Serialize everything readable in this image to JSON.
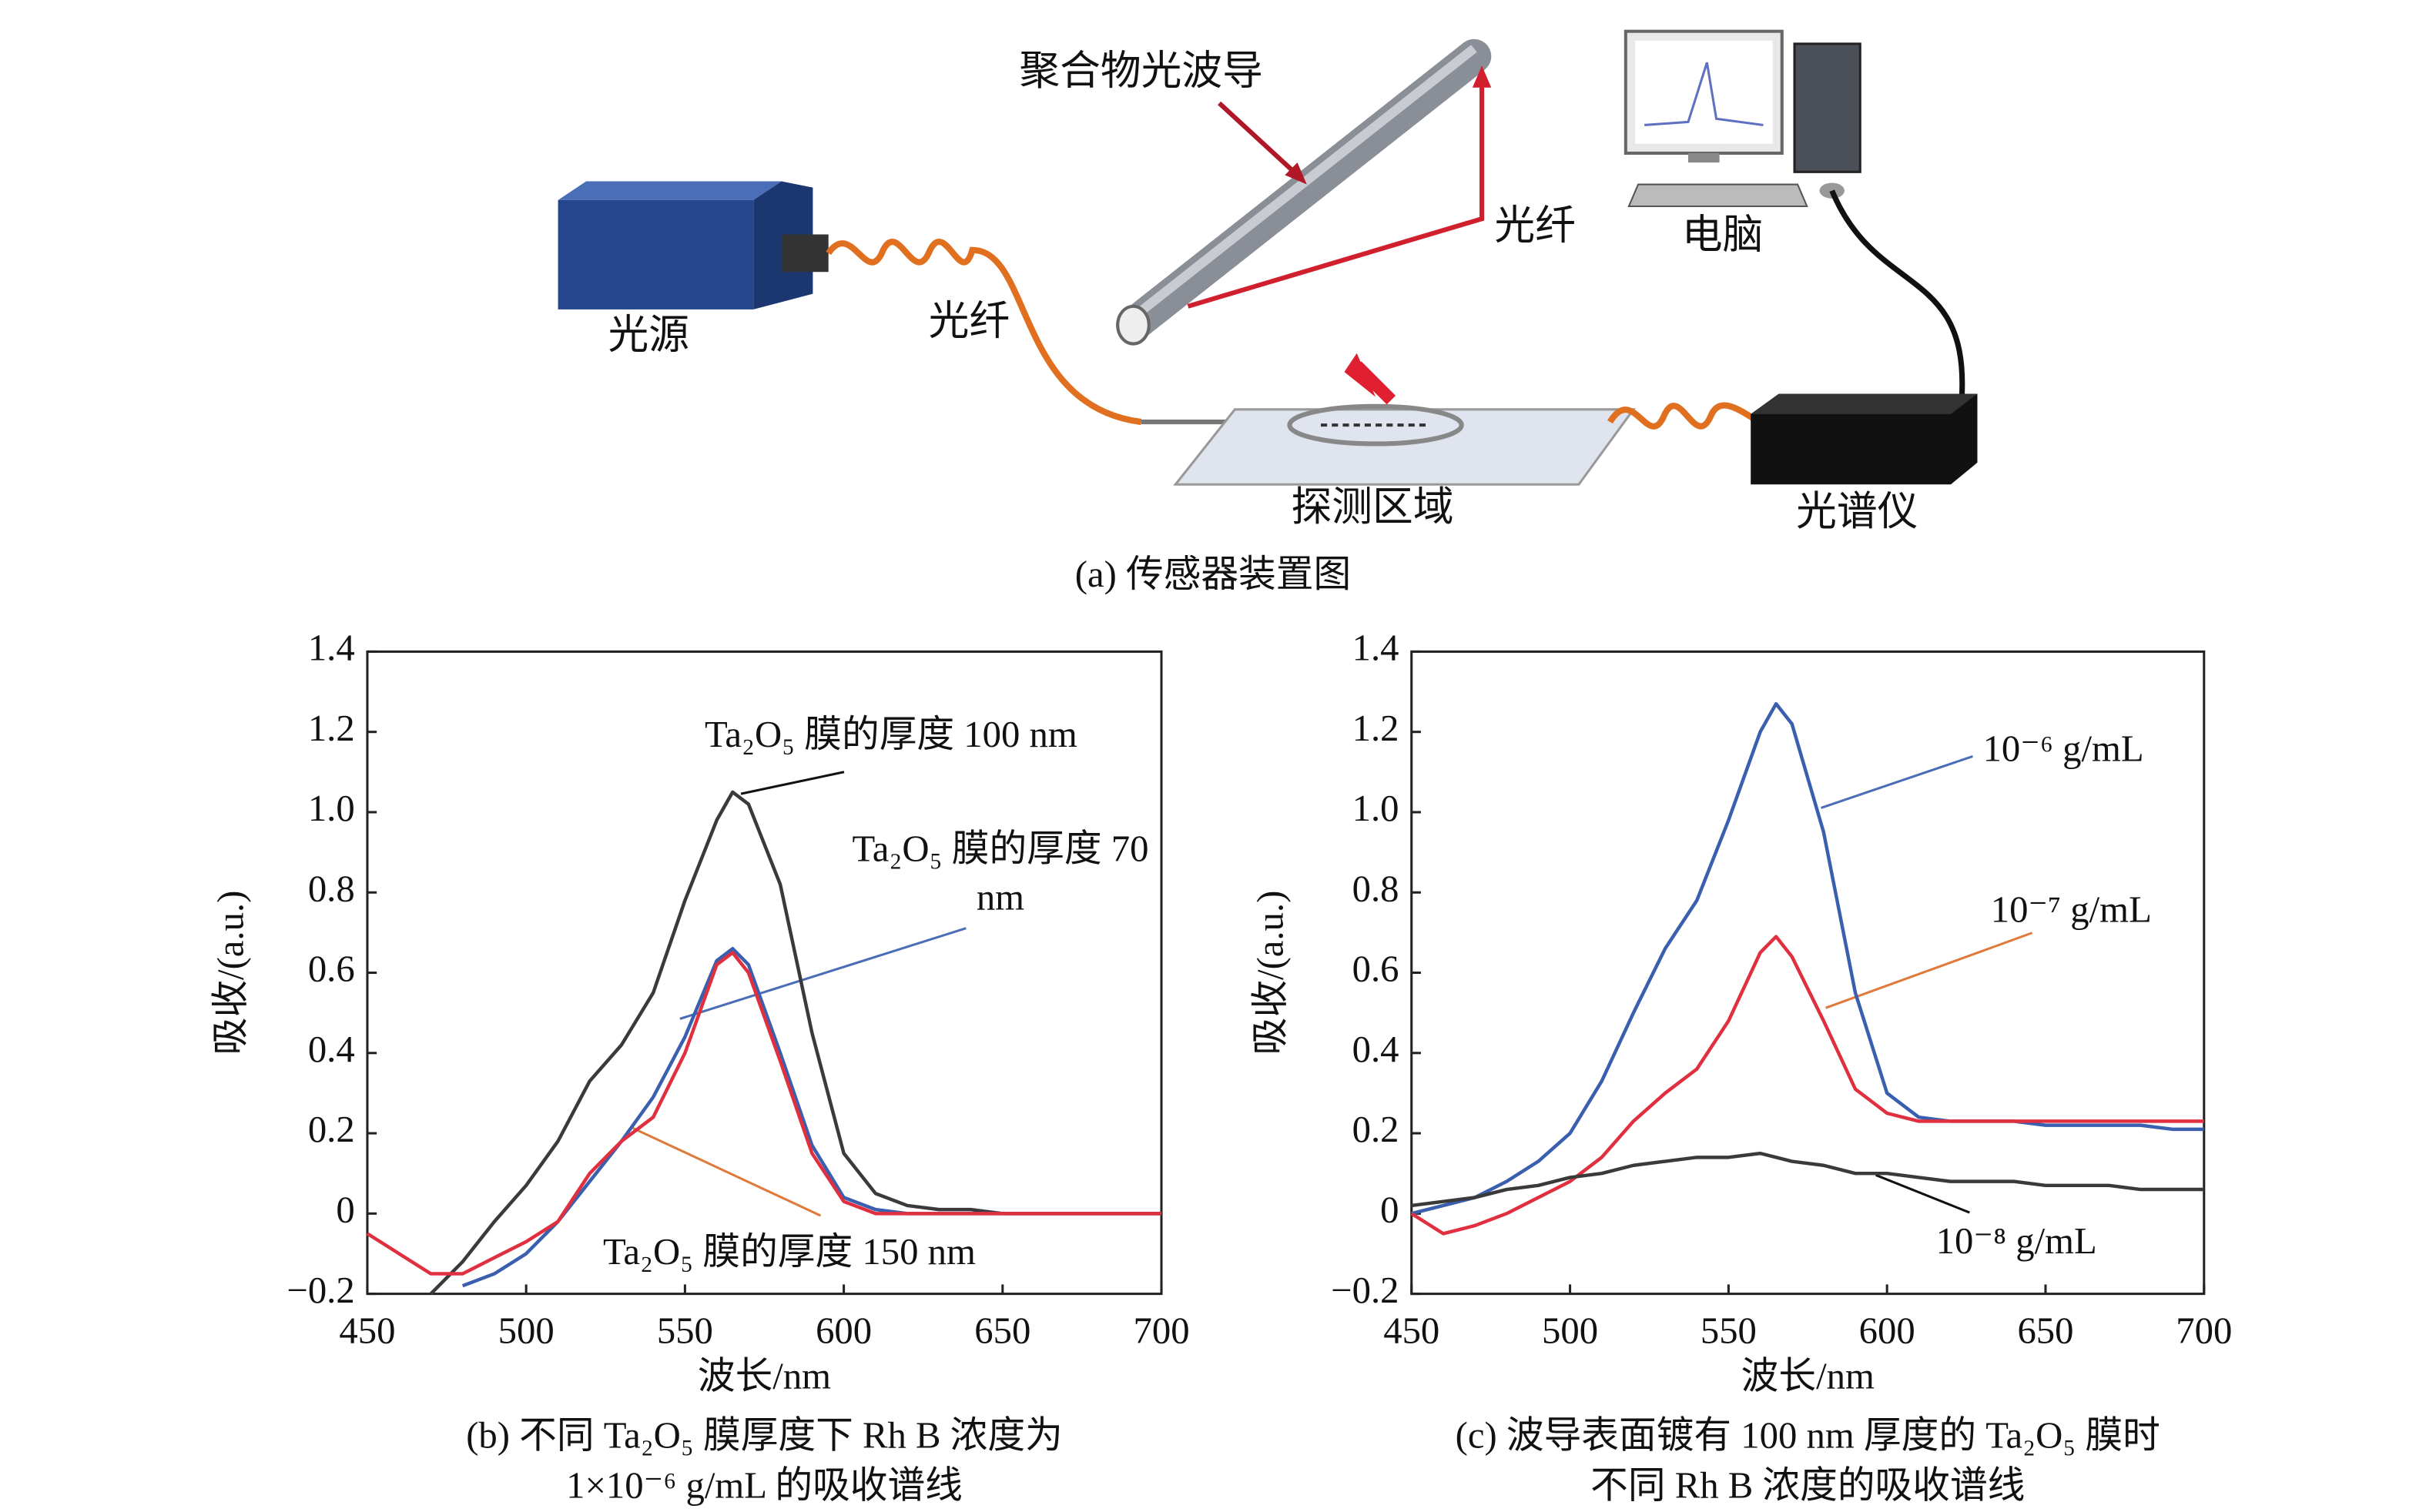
{
  "diagram": {
    "labels": {
      "waveguide": "聚合物光波导",
      "fiber_top": "光纤",
      "computer": "电脑",
      "source": "光源",
      "fiber_left": "光纤",
      "detection": "探测区域",
      "spectrometer": "光谱仪"
    },
    "caption": "(a) 传感器装置图"
  },
  "chart_data": [
    {
      "type": "line",
      "caption": [
        "(b) 不同 Ta₂O₅ 膜厚度下 Rh B 浓度为",
        "1×10⁻⁶ g/mL 的吸收谱线"
      ],
      "xlabel": "波长/nm",
      "ylabel": "吸收/(a.u.)",
      "x": [
        450,
        460,
        470,
        480,
        490,
        500,
        510,
        520,
        530,
        540,
        550,
        560,
        565,
        570,
        580,
        590,
        600,
        610,
        620,
        630,
        640,
        650,
        660,
        670,
        680,
        690,
        700
      ],
      "xlim": [
        450,
        700
      ],
      "ylim": [
        -0.2,
        1.4
      ],
      "xticks": [
        450,
        500,
        550,
        600,
        650,
        700
      ],
      "yticks": [
        {
          "value": -0.2,
          "label": "−0.2"
        },
        0,
        0.2,
        0.4,
        0.6,
        0.8,
        {
          "value": 1,
          "label": "1.0"
        },
        1.2,
        1.4
      ],
      "series": [
        {
          "name": "Ta₂O₅ 膜的厚度 100 nm",
          "color": "#3a3a3a",
          "values": [
            null,
            null,
            -0.2,
            -0.12,
            -0.02,
            0.07,
            0.18,
            0.33,
            0.42,
            0.55,
            0.78,
            0.98,
            1.05,
            1.02,
            0.82,
            0.45,
            0.15,
            0.05,
            0.02,
            0.01,
            0.01,
            0.0,
            0.0,
            0.0,
            0.0,
            0.0,
            0.0
          ]
        },
        {
          "name": "Ta₂O₅ 膜的厚度 70 nm",
          "color": "#3a5fae",
          "values": [
            null,
            null,
            null,
            -0.18,
            -0.15,
            -0.1,
            -0.02,
            0.08,
            0.18,
            0.29,
            0.44,
            0.63,
            0.66,
            0.62,
            0.4,
            0.17,
            0.04,
            0.01,
            0.0,
            0.0,
            0.0,
            0.0,
            0.0,
            0.0,
            0.0,
            0.0,
            0.0
          ]
        },
        {
          "name": "Ta₂O₅ 膜的厚度 150 nm",
          "color": "#e03040",
          "values": [
            -0.05,
            -0.1,
            -0.15,
            -0.15,
            -0.11,
            -0.07,
            -0.02,
            0.1,
            0.18,
            0.24,
            0.4,
            0.62,
            0.65,
            0.6,
            0.38,
            0.15,
            0.03,
            0.0,
            0.0,
            0.0,
            0.0,
            0.0,
            0.0,
            0.0,
            0.0,
            0.0,
            0.0
          ]
        }
      ]
    },
    {
      "type": "line",
      "caption": [
        "(c) 波导表面镀有 100 nm 厚度的 Ta₂O₅ 膜时",
        "不同 Rh B 浓度的吸收谱线"
      ],
      "xlabel": "波长/nm",
      "ylabel": "吸收/(a.u.)",
      "x": [
        450,
        460,
        470,
        480,
        490,
        500,
        510,
        520,
        530,
        540,
        550,
        560,
        565,
        570,
        580,
        590,
        600,
        610,
        620,
        630,
        640,
        650,
        660,
        670,
        680,
        690,
        700
      ],
      "xlim": [
        450,
        700
      ],
      "ylim": [
        -0.2,
        1.4
      ],
      "xticks": [
        450,
        500,
        550,
        600,
        650,
        700
      ],
      "yticks": [
        {
          "value": -0.2,
          "label": "−0.2"
        },
        0,
        0.2,
        0.4,
        0.6,
        0.8,
        {
          "value": 1,
          "label": "1.0"
        },
        1.2,
        1.4
      ],
      "series": [
        {
          "name": "10⁻⁶ g/mL",
          "color": "#3a5fae",
          "values": [
            0.0,
            0.02,
            0.04,
            0.08,
            0.13,
            0.2,
            0.33,
            0.5,
            0.66,
            0.78,
            0.98,
            1.2,
            1.27,
            1.22,
            0.95,
            0.55,
            0.3,
            0.24,
            0.23,
            0.23,
            0.23,
            0.22,
            0.22,
            0.22,
            0.22,
            0.21,
            0.21
          ]
        },
        {
          "name": "10⁻⁷ g/mL",
          "color": "#e03040",
          "values": [
            0.0,
            -0.05,
            -0.03,
            0.0,
            0.04,
            0.08,
            0.14,
            0.23,
            0.3,
            0.36,
            0.48,
            0.65,
            0.69,
            0.64,
            0.48,
            0.31,
            0.25,
            0.23,
            0.23,
            0.23,
            0.23,
            0.23,
            0.23,
            0.23,
            0.23,
            0.23,
            0.23
          ]
        },
        {
          "name": "10⁻⁸ g/mL",
          "color": "#3a3a3a",
          "values": [
            0.02,
            0.03,
            0.04,
            0.06,
            0.07,
            0.09,
            0.1,
            0.12,
            0.13,
            0.14,
            0.14,
            0.15,
            0.14,
            0.13,
            0.12,
            0.1,
            0.1,
            0.09,
            0.08,
            0.08,
            0.08,
            0.07,
            0.07,
            0.07,
            0.06,
            0.06,
            0.06
          ]
        }
      ]
    }
  ]
}
